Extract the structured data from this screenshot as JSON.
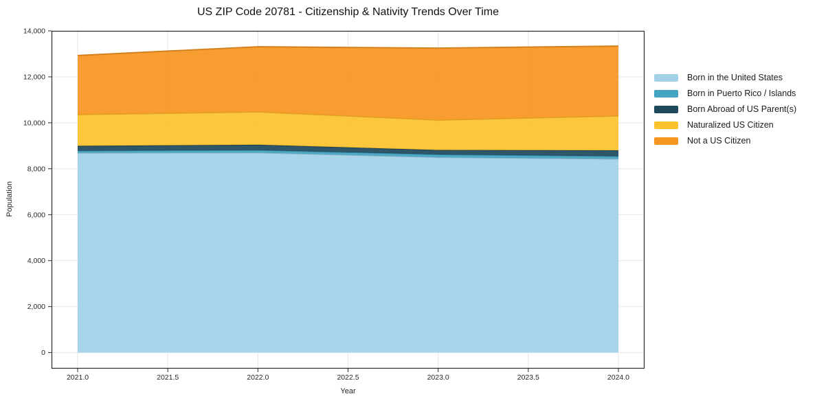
{
  "title": "US ZIP Code 20781 - Citizenship & Nativity Trends Over Time",
  "chart_data": {
    "type": "area",
    "stacked": true,
    "title": "US ZIP Code 20781 - Citizenship & Nativity Trends Over Time",
    "xlabel": "Year",
    "ylabel": "Population",
    "x": [
      2021,
      2022,
      2023,
      2024
    ],
    "series": [
      {
        "name": "Born in the United States",
        "color": "#a3d2e8",
        "values": [
          8690,
          8700,
          8500,
          8430
        ]
      },
      {
        "name": "Born in Puerto Rico / Islands",
        "color": "#44a5c3",
        "values": [
          90,
          110,
          120,
          115
        ]
      },
      {
        "name": "Born Abroad of US Parent(s)",
        "color": "#1f4a5e",
        "values": [
          215,
          235,
          195,
          255
        ]
      },
      {
        "name": "Naturalized US Citizen",
        "color": "#fdc32e",
        "values": [
          1365,
          1430,
          1305,
          1500
        ]
      },
      {
        "name": "Not a US Citizen",
        "color": "#f89622",
        "values": [
          2570,
          2835,
          3130,
          3040
        ]
      }
    ],
    "xlim": [
      2020.855,
      2024.145
    ],
    "ylim": [
      -700,
      14000
    ],
    "xticks": {
      "values": [
        2021.0,
        2021.5,
        2022.0,
        2022.5,
        2023.0,
        2023.5,
        2024.0
      ],
      "labels": [
        "2021.0",
        "2021.5",
        "2022.0",
        "2022.5",
        "2023.0",
        "2023.5",
        "2024.0"
      ]
    },
    "yticks": {
      "values": [
        0,
        2000,
        4000,
        6000,
        8000,
        10000,
        12000,
        14000
      ],
      "labels": [
        "0",
        "2,000",
        "4,000",
        "6,000",
        "8,000",
        "10,000",
        "12,000",
        "14,000"
      ]
    },
    "grid": true,
    "legend_position": "right-outside"
  },
  "colors": {
    "background": "#ffffff",
    "grid": "#e6e6e6",
    "spine": "#2b2b2b",
    "tick_text": "#262626"
  }
}
